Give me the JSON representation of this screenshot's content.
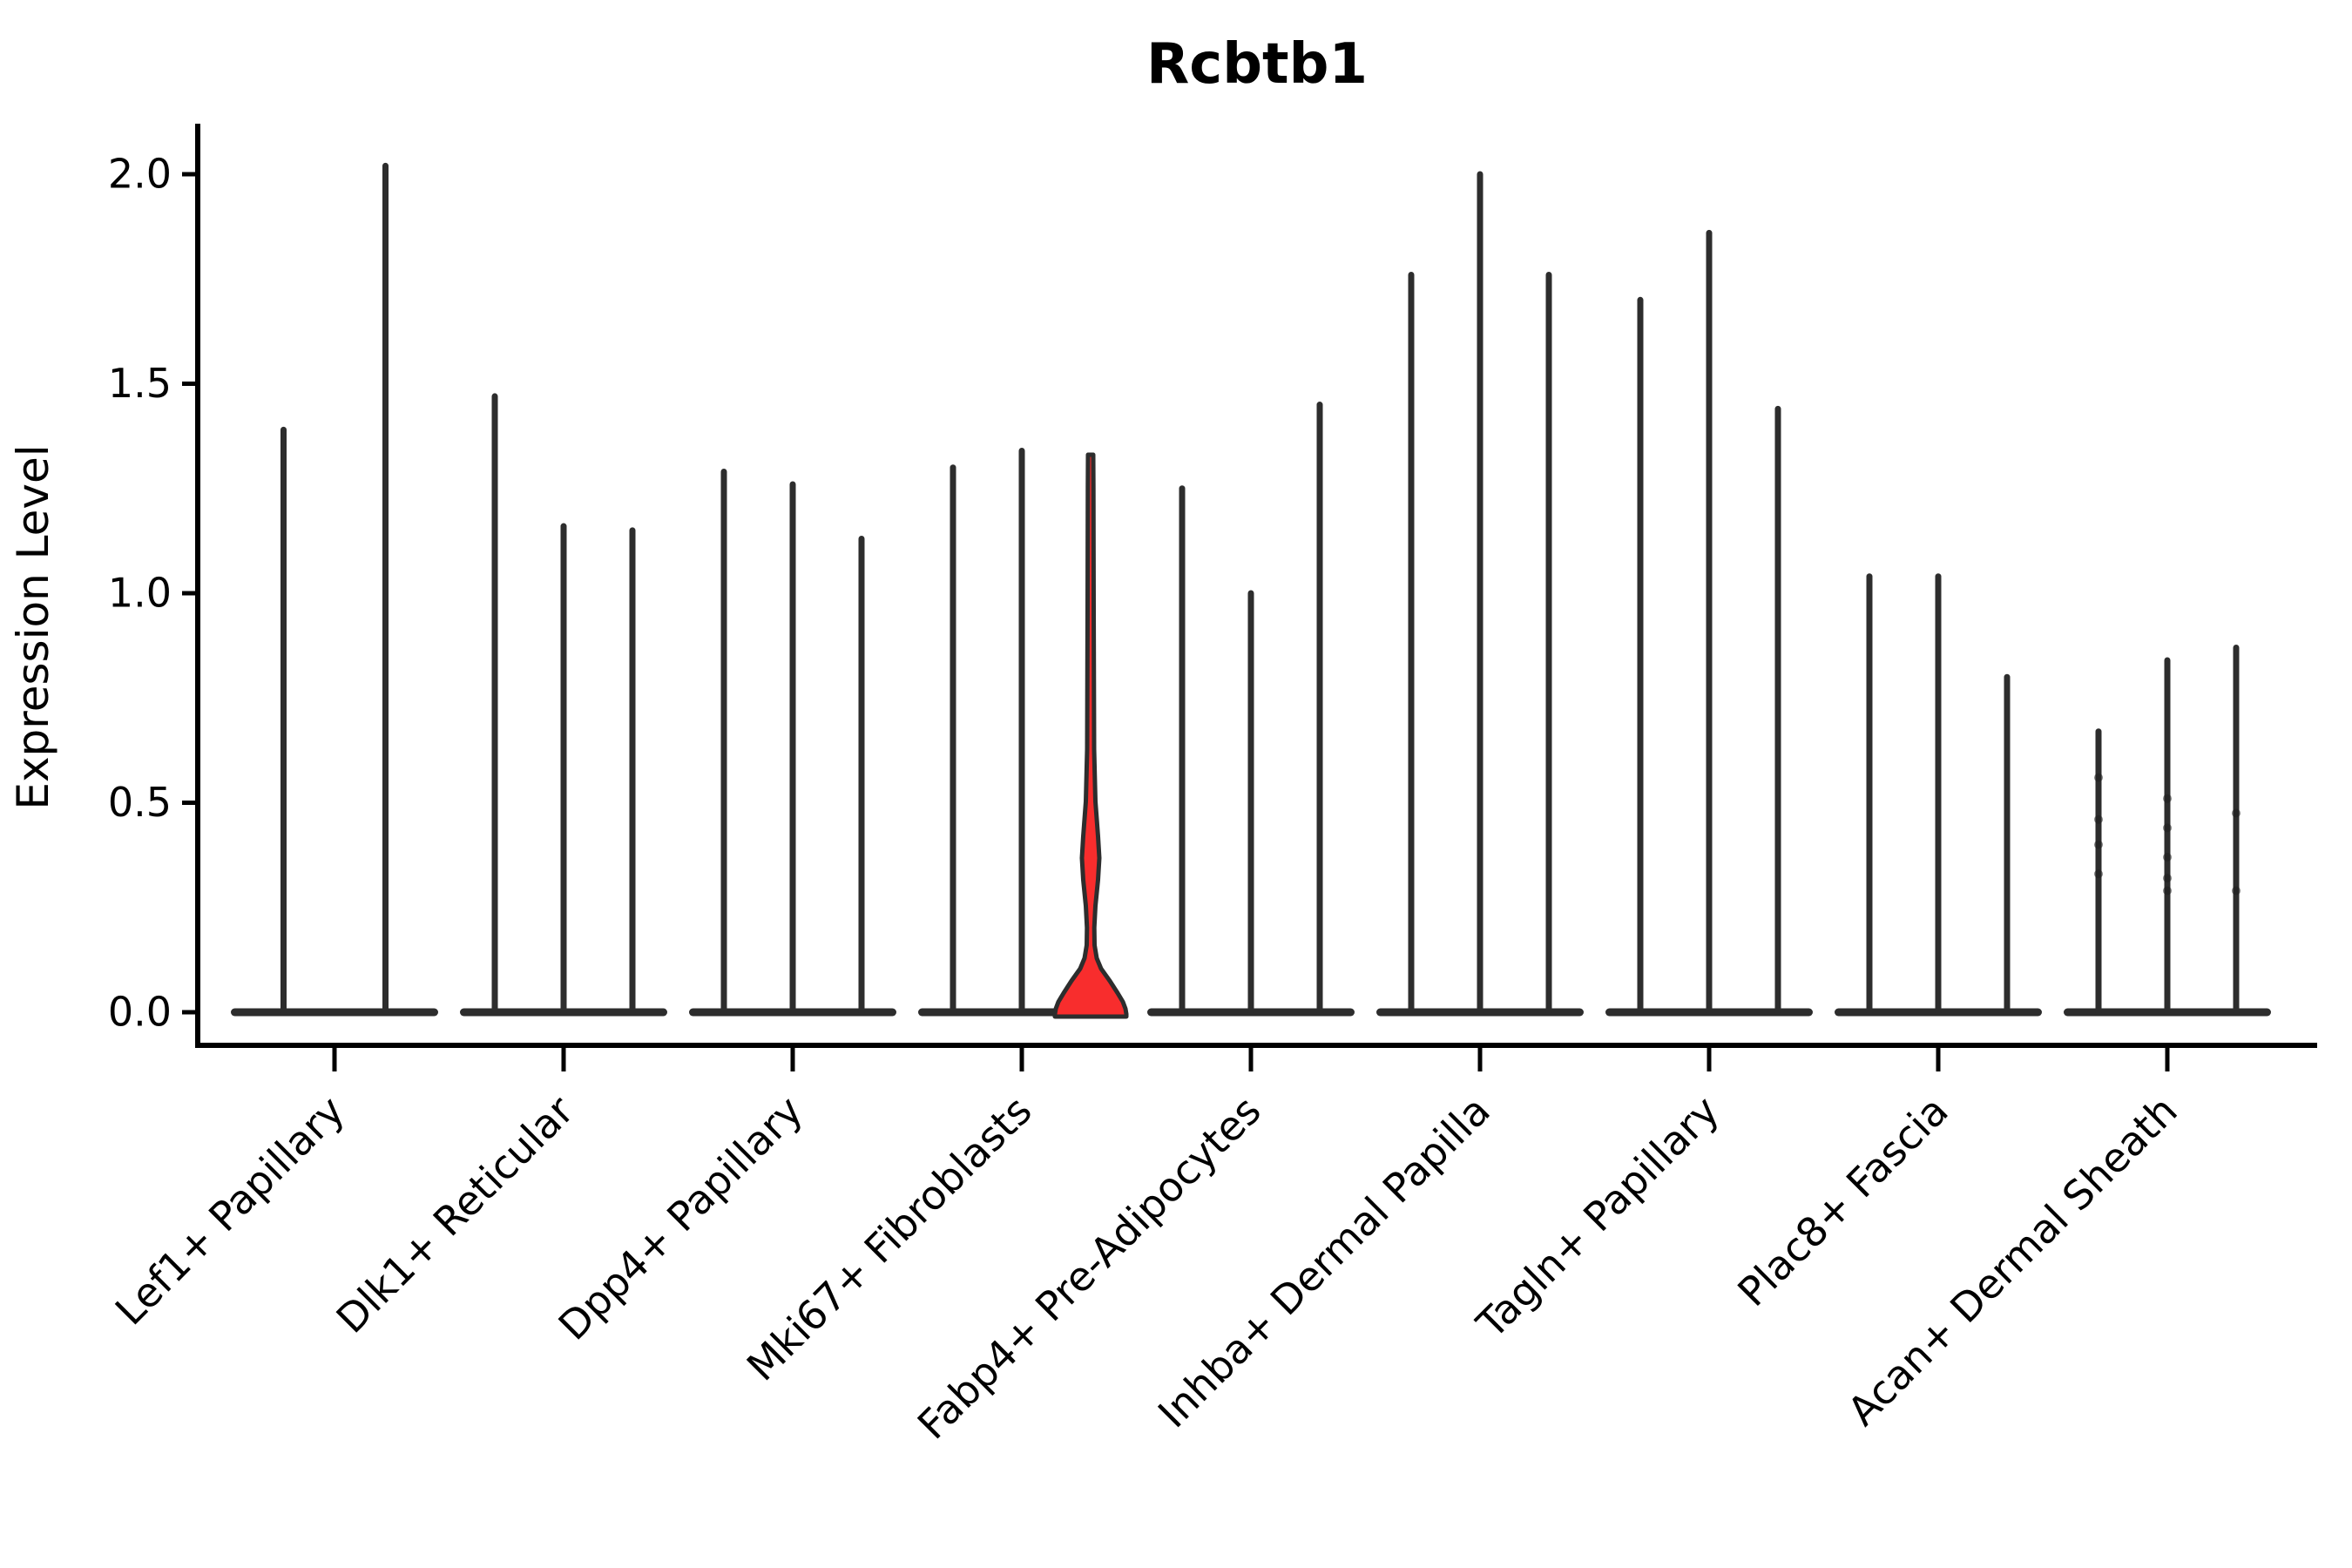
{
  "title": "Rcbtb1",
  "axes": {
    "ylabel": "Expression Level",
    "ytick_labels": [
      "0.0",
      "0.5",
      "1.0",
      "1.5",
      "2.0"
    ]
  },
  "chart_data": {
    "type": "violin",
    "title": "Rcbtb1",
    "xlabel": "",
    "ylabel": "Expression Level",
    "yticks": [
      0.0,
      0.5,
      1.0,
      1.5,
      2.0
    ],
    "ylim": [
      -0.09,
      2.12
    ],
    "grid": false,
    "legend": "none",
    "line_color": "#2d2d2d",
    "spine_color": "#000000",
    "highlight_color": "#f82d2d",
    "description": "Zero-inflated violins: each violin is a flat dense base at 0 with a thin spike to its maximum expression value; one violin (Mki67+ Fibroblasts, 3rd) is filled red with visible density bulges near 0 and around 0.3-0.5.",
    "categories": [
      {
        "label": "Lef1+ Papillary",
        "violins": [
          {
            "max": 1.39
          },
          {
            "max": 2.02
          }
        ]
      },
      {
        "label": "Dlk1+ Reticular",
        "violins": [
          {
            "max": 1.47
          },
          {
            "max": 1.16
          },
          {
            "max": 1.15
          }
        ]
      },
      {
        "label": "Dpp4+ Papillary",
        "violins": [
          {
            "max": 1.29
          },
          {
            "max": 1.26
          },
          {
            "max": 1.13
          }
        ]
      },
      {
        "label": "Mki67+ Fibroblasts",
        "violins": [
          {
            "max": 1.3
          },
          {
            "max": 1.34
          },
          {
            "max": 1.33,
            "highlight": true
          }
        ]
      },
      {
        "label": "Fabp4+ Pre-Adipocytes",
        "violins": [
          {
            "max": 1.25
          },
          {
            "max": 1.0
          },
          {
            "max": 1.45
          }
        ]
      },
      {
        "label": "Inhba+ Dermal Papilla",
        "violins": [
          {
            "max": 1.76
          },
          {
            "max": 2.0
          },
          {
            "max": 1.76
          }
        ]
      },
      {
        "label": "Tagln+ Papillary",
        "violins": [
          {
            "max": 1.7
          },
          {
            "max": 1.86
          },
          {
            "max": 1.44
          }
        ]
      },
      {
        "label": "Plac8+ Fascia",
        "violins": [
          {
            "max": 1.04
          },
          {
            "max": 1.04
          },
          {
            "max": 0.8
          }
        ]
      },
      {
        "label": "Acan+ Dermal Sheath",
        "violins": [
          {
            "max": 0.67,
            "dots": [
              0.56,
              0.46,
              0.4,
              0.33
            ]
          },
          {
            "max": 0.84,
            "dots": [
              0.51,
              0.44,
              0.37,
              0.32,
              0.29
            ]
          },
          {
            "max": 0.87,
            "dots": [
              0.475,
              0.29
            ]
          }
        ]
      }
    ],
    "highlight_violin_profile": [
      [
        522,
        3
      ],
      [
        560,
        3.2
      ],
      [
        700,
        3.5
      ],
      [
        860,
        4
      ],
      [
        920,
        5.5
      ],
      [
        960,
        8.5
      ],
      [
        985,
        10
      ],
      [
        1010,
        8.5
      ],
      [
        1040,
        5.5
      ],
      [
        1065,
        4.2
      ],
      [
        1085,
        4.5
      ],
      [
        1100,
        7
      ],
      [
        1112,
        12
      ],
      [
        1126,
        22
      ],
      [
        1140,
        31
      ],
      [
        1150,
        37
      ],
      [
        1158,
        40
      ],
      [
        1164,
        41
      ],
      [
        1167,
        41
      ]
    ]
  }
}
